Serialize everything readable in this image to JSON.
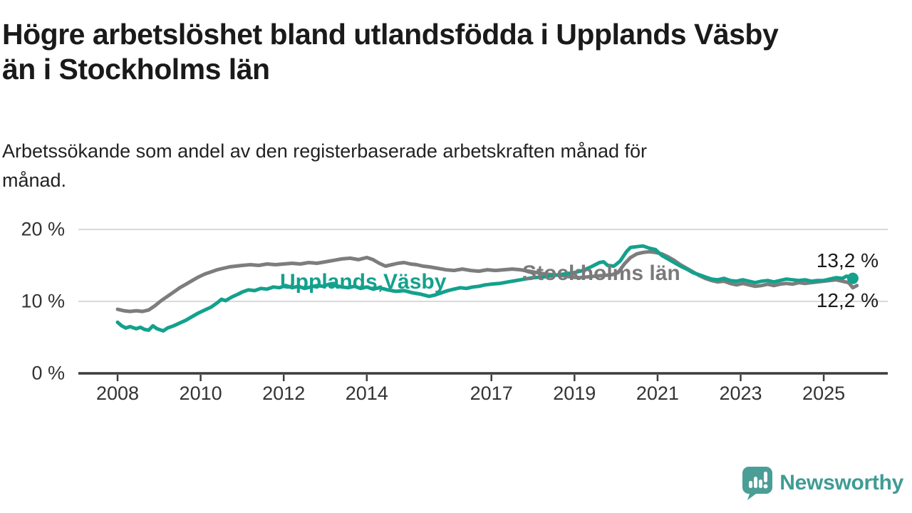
{
  "title": "Högre arbetslöshet bland utlandsfödda i Upplands Väsby\nän i Stockholms län",
  "subtitle": "Arbetssökande som andel av den registerbaserade arbetskraften månad för\nmånad.",
  "branding": {
    "name": "Newsworthy",
    "color": "#3f9c94",
    "logo_icon": "speech-bubble-bar-chart-icon"
  },
  "chart_data": {
    "type": "line",
    "title": "Högre arbetslöshet bland utlandsfödda i Upplands Väsby än i Stockholms län",
    "subtitle": "Arbetssökande som andel av den registerbaserade arbetskraften månad för månad.",
    "unit": "percent of registered labour force",
    "grid": true,
    "legend_position": "inline-labels",
    "colors": {
      "upplands_vasby": "#13a18d",
      "stockholms_lan": "#7d7d7d",
      "gridline": "#d9d9d9",
      "axis": "#3c3c3c"
    },
    "y_axis": {
      "range": [
        0,
        21
      ],
      "ticks": [
        {
          "value": 0,
          "label": "0 %"
        },
        {
          "value": 10,
          "label": "10 %"
        },
        {
          "value": 20,
          "label": "20 %"
        }
      ]
    },
    "x_axis": {
      "range": [
        2007.9,
        2026.2
      ],
      "ticks": [
        {
          "value": 2008,
          "label": "2008"
        },
        {
          "value": 2010,
          "label": "2010"
        },
        {
          "value": 2012,
          "label": "2012"
        },
        {
          "value": 2014,
          "label": "2014"
        },
        {
          "value": 2017,
          "label": "2017"
        },
        {
          "value": 2019,
          "label": "2019"
        },
        {
          "value": 2021,
          "label": "2021"
        },
        {
          "value": 2023,
          "label": "2023"
        },
        {
          "value": 2025,
          "label": "2025"
        }
      ]
    },
    "series": [
      {
        "name": "Stockholms län",
        "inline_label": "Stockholms län",
        "color": "#7d7d7d",
        "end_value_label": "12,2 %",
        "end_value": 12.2,
        "end_dot": false,
        "points": [
          [
            2008.0,
            8.9
          ],
          [
            2008.15,
            8.7
          ],
          [
            2008.3,
            8.6
          ],
          [
            2008.45,
            8.7
          ],
          [
            2008.6,
            8.6
          ],
          [
            2008.75,
            8.8
          ],
          [
            2008.9,
            9.4
          ],
          [
            2009.05,
            10.1
          ],
          [
            2009.2,
            10.7
          ],
          [
            2009.35,
            11.3
          ],
          [
            2009.5,
            11.9
          ],
          [
            2009.65,
            12.4
          ],
          [
            2009.8,
            12.9
          ],
          [
            2009.95,
            13.4
          ],
          [
            2010.1,
            13.8
          ],
          [
            2010.25,
            14.1
          ],
          [
            2010.4,
            14.4
          ],
          [
            2010.55,
            14.6
          ],
          [
            2010.7,
            14.8
          ],
          [
            2010.85,
            14.9
          ],
          [
            2011.0,
            15.0
          ],
          [
            2011.2,
            15.1
          ],
          [
            2011.4,
            15.0
          ],
          [
            2011.6,
            15.2
          ],
          [
            2011.8,
            15.1
          ],
          [
            2012.0,
            15.2
          ],
          [
            2012.2,
            15.3
          ],
          [
            2012.4,
            15.2
          ],
          [
            2012.6,
            15.4
          ],
          [
            2012.8,
            15.3
          ],
          [
            2013.0,
            15.5
          ],
          [
            2013.2,
            15.7
          ],
          [
            2013.4,
            15.9
          ],
          [
            2013.6,
            16.0
          ],
          [
            2013.8,
            15.8
          ],
          [
            2014.0,
            16.1
          ],
          [
            2014.15,
            15.8
          ],
          [
            2014.3,
            15.3
          ],
          [
            2014.45,
            14.9
          ],
          [
            2014.6,
            15.1
          ],
          [
            2014.75,
            15.3
          ],
          [
            2014.9,
            15.4
          ],
          [
            2015.05,
            15.2
          ],
          [
            2015.2,
            15.1
          ],
          [
            2015.35,
            14.9
          ],
          [
            2015.5,
            14.8
          ],
          [
            2015.7,
            14.6
          ],
          [
            2015.9,
            14.4
          ],
          [
            2016.1,
            14.3
          ],
          [
            2016.3,
            14.5
          ],
          [
            2016.5,
            14.3
          ],
          [
            2016.7,
            14.2
          ],
          [
            2016.9,
            14.4
          ],
          [
            2017.1,
            14.3
          ],
          [
            2017.3,
            14.4
          ],
          [
            2017.5,
            14.5
          ],
          [
            2017.7,
            14.4
          ],
          [
            2017.9,
            14.2
          ],
          [
            2018.1,
            14.0
          ],
          [
            2018.3,
            13.8
          ],
          [
            2018.5,
            13.7
          ],
          [
            2018.7,
            13.6
          ],
          [
            2018.9,
            13.4
          ],
          [
            2019.1,
            13.3
          ],
          [
            2019.3,
            13.4
          ],
          [
            2019.5,
            13.5
          ],
          [
            2019.7,
            13.6
          ],
          [
            2019.9,
            13.7
          ],
          [
            2020.05,
            14.0
          ],
          [
            2020.2,
            15.2
          ],
          [
            2020.35,
            16.1
          ],
          [
            2020.5,
            16.6
          ],
          [
            2020.65,
            16.8
          ],
          [
            2020.8,
            16.9
          ],
          [
            2020.95,
            16.8
          ],
          [
            2021.1,
            16.6
          ],
          [
            2021.25,
            16.2
          ],
          [
            2021.4,
            15.7
          ],
          [
            2021.55,
            15.1
          ],
          [
            2021.7,
            14.6
          ],
          [
            2021.85,
            14.1
          ],
          [
            2022.0,
            13.6
          ],
          [
            2022.15,
            13.2
          ],
          [
            2022.3,
            12.9
          ],
          [
            2022.45,
            12.7
          ],
          [
            2022.6,
            12.8
          ],
          [
            2022.75,
            12.5
          ],
          [
            2022.9,
            12.3
          ],
          [
            2023.05,
            12.5
          ],
          [
            2023.2,
            12.3
          ],
          [
            2023.35,
            12.1
          ],
          [
            2023.5,
            12.2
          ],
          [
            2023.65,
            12.4
          ],
          [
            2023.8,
            12.2
          ],
          [
            2023.95,
            12.4
          ],
          [
            2024.1,
            12.5
          ],
          [
            2024.25,
            12.4
          ],
          [
            2024.4,
            12.6
          ],
          [
            2024.55,
            12.5
          ],
          [
            2024.7,
            12.6
          ],
          [
            2024.85,
            12.7
          ],
          [
            2025.0,
            12.8
          ],
          [
            2025.15,
            12.9
          ],
          [
            2025.3,
            13.0
          ],
          [
            2025.45,
            12.8
          ],
          [
            2025.6,
            12.6
          ],
          [
            2025.7,
            11.9
          ],
          [
            2025.8,
            12.2
          ]
        ]
      },
      {
        "name": "Upplands Väsby",
        "inline_label": "Upplands,Väsby",
        "color": "#13a18d",
        "end_value_label": "13,2 %",
        "end_value": 13.2,
        "end_dot": true,
        "points": [
          [
            2008.0,
            7.1
          ],
          [
            2008.1,
            6.6
          ],
          [
            2008.2,
            6.3
          ],
          [
            2008.3,
            6.5
          ],
          [
            2008.45,
            6.2
          ],
          [
            2008.55,
            6.4
          ],
          [
            2008.65,
            6.1
          ],
          [
            2008.75,
            6.0
          ],
          [
            2008.85,
            6.6
          ],
          [
            2008.95,
            6.2
          ],
          [
            2009.1,
            5.9
          ],
          [
            2009.2,
            6.3
          ],
          [
            2009.35,
            6.6
          ],
          [
            2009.5,
            7.0
          ],
          [
            2009.65,
            7.4
          ],
          [
            2009.8,
            7.9
          ],
          [
            2009.95,
            8.4
          ],
          [
            2010.1,
            8.8
          ],
          [
            2010.25,
            9.2
          ],
          [
            2010.4,
            9.8
          ],
          [
            2010.5,
            10.3
          ],
          [
            2010.6,
            10.1
          ],
          [
            2010.75,
            10.6
          ],
          [
            2010.9,
            11.0
          ],
          [
            2011.0,
            11.3
          ],
          [
            2011.15,
            11.6
          ],
          [
            2011.3,
            11.5
          ],
          [
            2011.45,
            11.8
          ],
          [
            2011.6,
            11.7
          ],
          [
            2011.75,
            12.0
          ],
          [
            2011.9,
            11.9
          ],
          [
            2012.05,
            12.2
          ],
          [
            2012.2,
            11.9
          ],
          [
            2012.35,
            12.1
          ],
          [
            2012.5,
            11.8
          ],
          [
            2012.65,
            12.0
          ],
          [
            2012.8,
            12.2
          ],
          [
            2012.95,
            12.1
          ],
          [
            2013.1,
            12.4
          ],
          [
            2013.25,
            12.2
          ],
          [
            2013.4,
            12.0
          ],
          [
            2013.55,
            11.9
          ],
          [
            2013.7,
            12.1
          ],
          [
            2013.85,
            11.8
          ],
          [
            2014.0,
            12.0
          ],
          [
            2014.15,
            11.7
          ],
          [
            2014.3,
            11.9
          ],
          [
            2014.5,
            11.6
          ],
          [
            2014.7,
            11.4
          ],
          [
            2014.9,
            11.5
          ],
          [
            2015.1,
            11.2
          ],
          [
            2015.3,
            11.0
          ],
          [
            2015.5,
            10.7
          ],
          [
            2015.65,
            10.9
          ],
          [
            2015.8,
            11.2
          ],
          [
            2015.95,
            11.5
          ],
          [
            2016.1,
            11.7
          ],
          [
            2016.25,
            11.9
          ],
          [
            2016.4,
            11.8
          ],
          [
            2016.55,
            12.0
          ],
          [
            2016.7,
            12.1
          ],
          [
            2016.85,
            12.3
          ],
          [
            2017.0,
            12.4
          ],
          [
            2017.2,
            12.5
          ],
          [
            2017.4,
            12.7
          ],
          [
            2017.6,
            12.9
          ],
          [
            2017.8,
            13.1
          ],
          [
            2018.0,
            13.3
          ],
          [
            2018.25,
            13.4
          ],
          [
            2018.5,
            13.6
          ],
          [
            2018.75,
            13.8
          ],
          [
            2019.0,
            14.0
          ],
          [
            2019.2,
            14.3
          ],
          [
            2019.4,
            14.8
          ],
          [
            2019.6,
            15.4
          ],
          [
            2019.7,
            15.5
          ],
          [
            2019.8,
            15.0
          ],
          [
            2019.95,
            14.9
          ],
          [
            2020.1,
            15.6
          ],
          [
            2020.25,
            16.9
          ],
          [
            2020.35,
            17.5
          ],
          [
            2020.5,
            17.6
          ],
          [
            2020.65,
            17.7
          ],
          [
            2020.8,
            17.4
          ],
          [
            2020.95,
            17.2
          ],
          [
            2021.1,
            16.4
          ],
          [
            2021.25,
            15.9
          ],
          [
            2021.4,
            15.4
          ],
          [
            2021.55,
            14.9
          ],
          [
            2021.7,
            14.5
          ],
          [
            2021.85,
            14.0
          ],
          [
            2022.0,
            13.7
          ],
          [
            2022.15,
            13.4
          ],
          [
            2022.3,
            13.1
          ],
          [
            2022.45,
            13.0
          ],
          [
            2022.6,
            13.2
          ],
          [
            2022.75,
            12.9
          ],
          [
            2022.9,
            12.8
          ],
          [
            2023.05,
            13.0
          ],
          [
            2023.2,
            12.8
          ],
          [
            2023.35,
            12.6
          ],
          [
            2023.5,
            12.8
          ],
          [
            2023.65,
            12.9
          ],
          [
            2023.8,
            12.7
          ],
          [
            2023.95,
            12.9
          ],
          [
            2024.1,
            13.1
          ],
          [
            2024.25,
            13.0
          ],
          [
            2024.4,
            12.9
          ],
          [
            2024.55,
            13.0
          ],
          [
            2024.7,
            12.8
          ],
          [
            2024.85,
            12.9
          ],
          [
            2025.0,
            12.9
          ],
          [
            2025.15,
            13.1
          ],
          [
            2025.3,
            13.3
          ],
          [
            2025.45,
            13.2
          ],
          [
            2025.55,
            13.5
          ],
          [
            2025.65,
            13.4
          ],
          [
            2025.7,
            13.2
          ]
        ]
      }
    ]
  }
}
